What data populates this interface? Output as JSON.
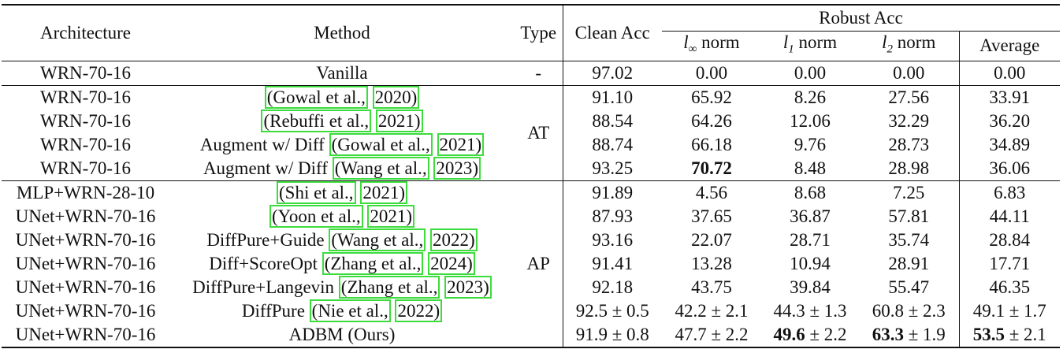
{
  "header": {
    "architecture": "Architecture",
    "method": "Method",
    "type": "Type",
    "clean": "Clean Acc",
    "robust": "Robust Acc",
    "norms": [
      {
        "sym": "l",
        "sub": "∞",
        "word": "norm"
      },
      {
        "sym": "l",
        "sub": "1",
        "word": "norm"
      },
      {
        "sym": "l",
        "sub": "2",
        "word": "norm"
      }
    ],
    "average": "Average"
  },
  "groups": [
    {
      "type": "-",
      "rows": [
        {
          "architecture": "WRN-70-16",
          "method": {
            "prefix": "Vanilla"
          },
          "values": [
            {
              "text": "97.02"
            },
            {
              "text": "0.00"
            },
            {
              "text": "0.00"
            },
            {
              "text": "0.00"
            },
            {
              "text": "0.00"
            }
          ]
        }
      ]
    },
    {
      "type": "AT",
      "rows": [
        {
          "architecture": "WRN-70-16",
          "method": {
            "author": "(Gowal et al.,",
            "year": "2020)"
          },
          "values": [
            {
              "text": "91.10"
            },
            {
              "text": "65.92"
            },
            {
              "text": "8.26"
            },
            {
              "text": "27.56"
            },
            {
              "text": "33.91"
            }
          ]
        },
        {
          "architecture": "WRN-70-16",
          "method": {
            "author": "(Rebuffi et al.,",
            "year": "2021)"
          },
          "values": [
            {
              "text": "88.54"
            },
            {
              "text": "64.26"
            },
            {
              "text": "12.06"
            },
            {
              "text": "32.29"
            },
            {
              "text": "36.20"
            }
          ]
        },
        {
          "architecture": "WRN-70-16",
          "method": {
            "prefix": "Augment w/ Diff",
            "author": "(Gowal et al.,",
            "year": "2021)"
          },
          "values": [
            {
              "text": "88.74"
            },
            {
              "text": "66.18"
            },
            {
              "text": "9.76"
            },
            {
              "text": "28.73"
            },
            {
              "text": "34.89"
            }
          ]
        },
        {
          "architecture": "WRN-70-16",
          "method": {
            "prefix": "Augment w/ Diff",
            "author": "(Wang et al.,",
            "year": "2023)"
          },
          "values": [
            {
              "text": "93.25"
            },
            {
              "text": "70.72",
              "bold": true
            },
            {
              "text": "8.48"
            },
            {
              "text": "28.98"
            },
            {
              "text": "36.06"
            }
          ]
        }
      ]
    },
    {
      "type": "AP",
      "rows": [
        {
          "architecture": "MLP+WRN-28-10",
          "method": {
            "author": "(Shi et al.,",
            "year": "2021)"
          },
          "values": [
            {
              "text": "91.89"
            },
            {
              "text": "4.56"
            },
            {
              "text": "8.68"
            },
            {
              "text": "7.25"
            },
            {
              "text": "6.83"
            }
          ]
        },
        {
          "architecture": "UNet+WRN-70-16",
          "method": {
            "author": "(Yoon et al.,",
            "year": "2021)"
          },
          "values": [
            {
              "text": "87.93"
            },
            {
              "text": "37.65"
            },
            {
              "text": "36.87"
            },
            {
              "text": "57.81"
            },
            {
              "text": "44.11"
            }
          ]
        },
        {
          "architecture": "UNet+WRN-70-16",
          "method": {
            "prefix": "DiffPure+Guide",
            "author": "(Wang et al.,",
            "year": "2022)"
          },
          "values": [
            {
              "text": "93.16"
            },
            {
              "text": "22.07"
            },
            {
              "text": "28.71"
            },
            {
              "text": "35.74"
            },
            {
              "text": "28.84"
            }
          ]
        },
        {
          "architecture": "UNet+WRN-70-16",
          "method": {
            "prefix": "Diff+ScoreOpt",
            "author": "(Zhang et al.,",
            "year": "2024)"
          },
          "values": [
            {
              "text": "91.41"
            },
            {
              "text": "13.28"
            },
            {
              "text": "10.94"
            },
            {
              "text": "28.91"
            },
            {
              "text": "17.71"
            }
          ]
        },
        {
          "architecture": "UNet+WRN-70-16",
          "method": {
            "prefix": "DiffPure+Langevin",
            "author": "(Zhang et al.,",
            "year": "2023)"
          },
          "values": [
            {
              "text": "92.18"
            },
            {
              "text": "43.75"
            },
            {
              "text": "39.84"
            },
            {
              "text": "55.47"
            },
            {
              "text": "46.35"
            }
          ]
        },
        {
          "architecture": "UNet+WRN-70-16",
          "method": {
            "prefix": "DiffPure",
            "author": "(Nie et al.,",
            "year": "2022)"
          },
          "values": [
            {
              "text": "92.5 ± 0.5"
            },
            {
              "text": "42.2 ± 2.1"
            },
            {
              "text": "44.3 ± 1.3"
            },
            {
              "text": "60.8 ± 2.3"
            },
            {
              "text": "49.1 ± 1.7"
            }
          ]
        },
        {
          "architecture": "UNet+WRN-70-16",
          "method": {
            "prefix": "ADBM (Ours)"
          },
          "values": [
            {
              "text": "91.9 ± 0.8"
            },
            {
              "text": "47.7 ± 2.2"
            },
            {
              "text": "49.6",
              "bold": true,
              "rest": "± 2.2"
            },
            {
              "text": "63.3",
              "bold": true,
              "rest": "± 1.9"
            },
            {
              "text": "53.5",
              "bold": true,
              "rest": "± 2.1"
            }
          ]
        }
      ]
    }
  ]
}
